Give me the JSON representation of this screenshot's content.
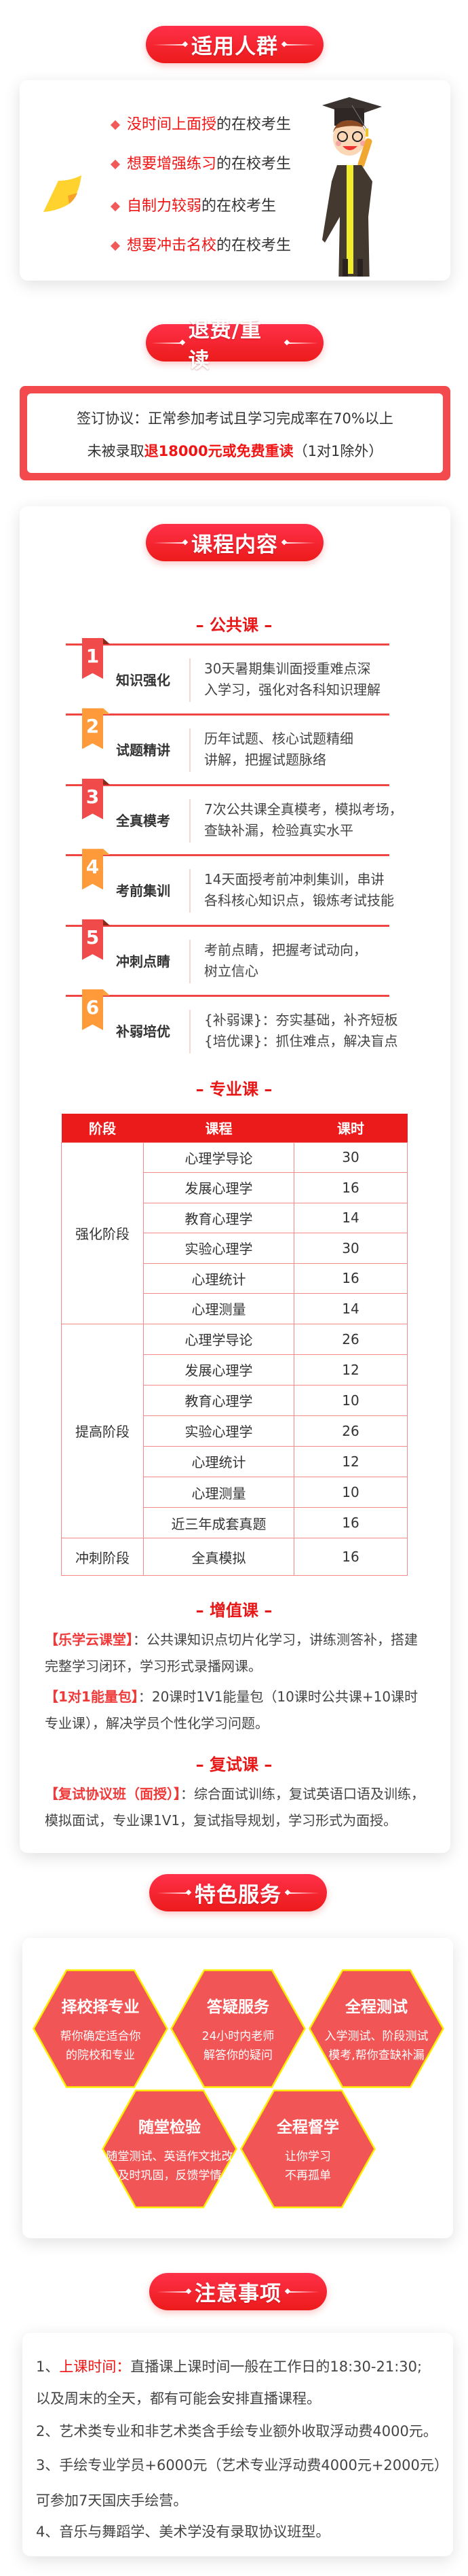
{
  "colors": {
    "accent": "#ec1b1b",
    "ribbon_red": "#f04a4a",
    "ribbon_orange": "#ff9a3a",
    "hex_fill": "#f25555",
    "hex_border": "#ffee00"
  },
  "audience": {
    "title": "适用人群",
    "items": [
      {
        "highlight": "没时间上面授",
        "rest": "的在校考生"
      },
      {
        "highlight": "想要增强练习",
        "rest": "的在校考生"
      },
      {
        "highlight": "自制力较弱",
        "rest": "的在校考生"
      },
      {
        "highlight": "想要冲击名校",
        "rest": "的在校考生"
      }
    ]
  },
  "refund": {
    "title": "退费/重读",
    "line1": "签订协议：正常参加考试且学习完成率在70%以上",
    "line2_prefix": "未被录取",
    "line2_highlight": "退18000元或免费重读",
    "line2_suffix": "（1对1除外）"
  },
  "course": {
    "title": "课程内容",
    "public": {
      "heading": "公共课",
      "items": [
        {
          "num": "1",
          "name": "知识强化",
          "desc": [
            "30天暑期集训面授重难点深",
            "入学习，强化对各科知识理解"
          ]
        },
        {
          "num": "2",
          "name": "试题精讲",
          "desc": [
            "历年试题、核心试题精细",
            "讲解，把握试题脉络"
          ]
        },
        {
          "num": "3",
          "name": "全真模考",
          "desc": [
            "7次公共课全真模考，模拟考场，",
            "查缺补漏，检验真实水平"
          ]
        },
        {
          "num": "4",
          "name": "考前集训",
          "desc": [
            "14天面授考前冲刺集训，串讲",
            "各科核心知识点，锻炼考试技能"
          ]
        },
        {
          "num": "5",
          "name": "冲刺点睛",
          "desc": [
            "考前点睛，把握考试动向，",
            "树立信心"
          ]
        },
        {
          "num": "6",
          "name": "补弱培优",
          "desc": [
            "{补弱课}：夯实基础，补齐短板",
            "{培优课}：抓住难点，解决盲点"
          ]
        }
      ]
    },
    "major": {
      "heading": "专业课",
      "columns": [
        "阶段",
        "课程",
        "课时"
      ],
      "groups": [
        {
          "stage": "强化阶段",
          "rows": [
            [
              "心理学导论",
              "30"
            ],
            [
              "发展心理学",
              "16"
            ],
            [
              "教育心理学",
              "14"
            ],
            [
              "实验心理学",
              "30"
            ],
            [
              "心理统计",
              "16"
            ],
            [
              "心理测量",
              "14"
            ]
          ]
        },
        {
          "stage": "提高阶段",
          "rows": [
            [
              "心理学导论",
              "26"
            ],
            [
              "发展心理学",
              "12"
            ],
            [
              "教育心理学",
              "10"
            ],
            [
              "实验心理学",
              "26"
            ],
            [
              "心理统计",
              "12"
            ],
            [
              "心理测量",
              "10"
            ],
            [
              "近三年成套真题",
              "16"
            ]
          ]
        },
        {
          "stage": "冲刺阶段",
          "rows": [
            [
              "全真模拟",
              "16"
            ]
          ]
        }
      ]
    },
    "value_added": {
      "heading": "增值课",
      "items": [
        {
          "tag": "【乐学云课堂】",
          "text": "：公共课知识点切片化学习，讲练测答补，搭建完整学习闭环，学习形式录播网课。"
        },
        {
          "tag": "【1对1能量包】",
          "text": "：20课时1V1能量包（10课时公共课+10课时专业课），解决学员个性化学习问题。"
        }
      ]
    },
    "retest": {
      "heading": "复试课",
      "items": [
        {
          "tag": "【复试协议班（面授）】",
          "text": "：综合面试训练，复试英语口语及训练，模拟面试，专业课1V1，复试指导规划，学习形式为面授。"
        }
      ]
    }
  },
  "services": {
    "title": "特色服务",
    "items": [
      {
        "title": "择校择专业",
        "lines": [
          "帮你确定适合你",
          "的院校和专业"
        ]
      },
      {
        "title": "答疑服务",
        "lines": [
          "24小时内老师",
          "解答你的疑问"
        ]
      },
      {
        "title": "全程测试",
        "lines": [
          "入学测试、阶段测试",
          "模考,帮你查缺补漏"
        ]
      },
      {
        "title": "随堂检验",
        "lines": [
          "随堂测试、英语作文批改",
          "及时巩固，反馈学情"
        ]
      },
      {
        "title": "全程督学",
        "lines": [
          "让你学习",
          "不再孤单"
        ]
      }
    ]
  },
  "notes": {
    "title": "注意事项",
    "lines": [
      {
        "prefix": "1、",
        "highlight": "上课时间：",
        "text": "直播课上课时间一般在工作日的18:30-21:30;"
      },
      {
        "text": "以及周末的全天，都有可能会安排直播课程。"
      },
      {
        "text": "2、艺术类专业和非艺术类含手绘专业额外收取浮动费4000元。"
      },
      {
        "text": "3、手绘专业学员+6000元（艺术专业浮动费4000元+2000元）"
      },
      {
        "text": "可参加7天国庆手绘营。"
      },
      {
        "text": "4、音乐与舞蹈学、美术学没有录取协议班型。"
      }
    ]
  }
}
